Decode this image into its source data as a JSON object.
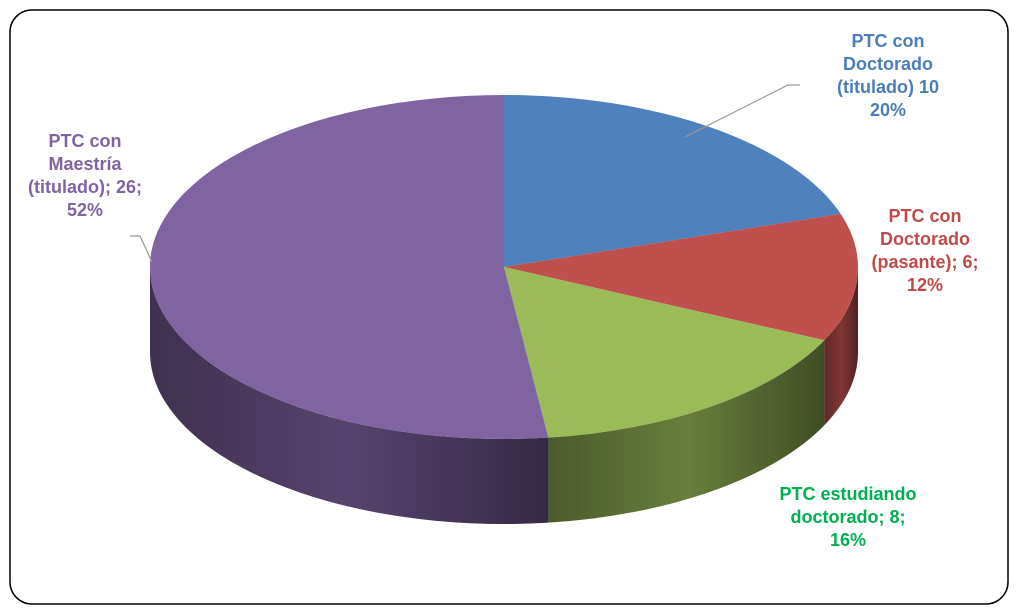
{
  "chart_data": {
    "type": "pie",
    "categories": [
      "PTC con Doctorado (titulado)",
      "PTC con Doctorado (pasante);",
      "PTC estudiando doctorado;",
      "PTC con Maestría (titulado);"
    ],
    "values": [
      10,
      6,
      8,
      26
    ],
    "value_labels": [
      "10",
      "6;",
      "8;",
      "26;"
    ],
    "percent_labels": [
      "20%",
      "12%",
      "16%",
      "52%"
    ],
    "colors": [
      "#4f81bd",
      "#c0504d",
      "#9bbb59",
      "#8064a2"
    ],
    "label_colors": [
      "#4a7ebb",
      "#be4b48",
      "#00b050",
      "#8064a2"
    ]
  }
}
